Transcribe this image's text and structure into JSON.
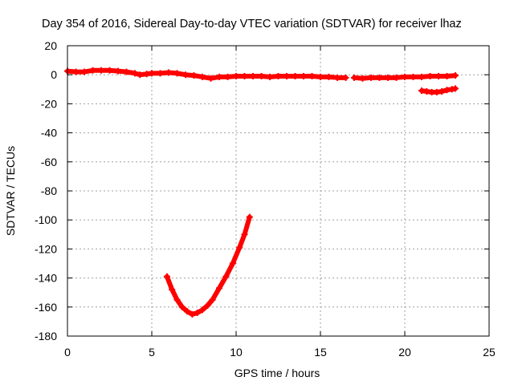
{
  "chart_data": {
    "type": "scatter",
    "title": "Day 354 of 2016, Sidereal Day-to-day VTEC variation (SDTVAR) for receiver lhaz",
    "xlabel": "GPS time / hours",
    "ylabel": "SDTVAR / TECUs",
    "xlim": [
      0,
      25
    ],
    "ylim": [
      -180,
      20
    ],
    "xticks": [
      0,
      5,
      10,
      15,
      20,
      25
    ],
    "yticks": [
      -180,
      -160,
      -140,
      -120,
      -100,
      -80,
      -60,
      -40,
      -20,
      0,
      20
    ],
    "grid": true,
    "marker": "+",
    "color": "#ff0000",
    "series": [
      {
        "name": "segment-1",
        "x": [
          0.0,
          0.5,
          1.0,
          1.5,
          2.0,
          2.5,
          3.0,
          3.5,
          4.0,
          4.3,
          4.7,
          5.0,
          5.5,
          6.0,
          6.5,
          7.0,
          7.5,
          8.0,
          8.5,
          9.0,
          9.5,
          10.0,
          10.5,
          11.0,
          11.5,
          12.0,
          12.5,
          13.0,
          13.5,
          14.0,
          14.5,
          15.0,
          15.5,
          16.0,
          16.5
        ],
        "y": [
          2.5,
          2.0,
          2.0,
          3.0,
          3.0,
          3.0,
          2.5,
          2.0,
          1.0,
          0.0,
          0.5,
          1.0,
          1.0,
          1.5,
          1.0,
          0.0,
          -0.5,
          -1.5,
          -2.5,
          -1.5,
          -1.5,
          -1.0,
          -1.0,
          -1.0,
          -1.0,
          -1.5,
          -1.0,
          -1.0,
          -1.0,
          -1.0,
          -1.0,
          -1.5,
          -1.5,
          -2.0,
          -2.0
        ]
      },
      {
        "name": "segment-2",
        "x": [
          17.0,
          17.5,
          18.0,
          18.5,
          19.0,
          19.5,
          20.0,
          20.5,
          21.0,
          21.5,
          22.0,
          22.5,
          23.0
        ],
        "y": [
          -2.0,
          -2.5,
          -2.0,
          -2.0,
          -2.0,
          -2.0,
          -1.5,
          -1.5,
          -1.5,
          -1.0,
          -1.0,
          -1.0,
          -0.5
        ]
      },
      {
        "name": "segment-3",
        "x": [
          21.0,
          21.3,
          21.6,
          21.9,
          22.2,
          22.5,
          22.8,
          23.0
        ],
        "y": [
          -11.0,
          -11.5,
          -12.0,
          -12.0,
          -11.5,
          -10.5,
          -10.0,
          -9.5
        ]
      },
      {
        "name": "segment-4",
        "x": [
          5.9,
          6.2,
          6.5,
          6.8,
          7.1,
          7.4,
          7.7,
          8.0,
          8.3,
          8.6,
          9.0,
          9.4,
          9.8,
          10.2,
          10.5,
          10.8
        ],
        "y": [
          -139,
          -148,
          -155,
          -160,
          -163,
          -165,
          -164,
          -162,
          -159,
          -155,
          -147,
          -139,
          -130,
          -119,
          -110,
          -98
        ]
      }
    ]
  }
}
